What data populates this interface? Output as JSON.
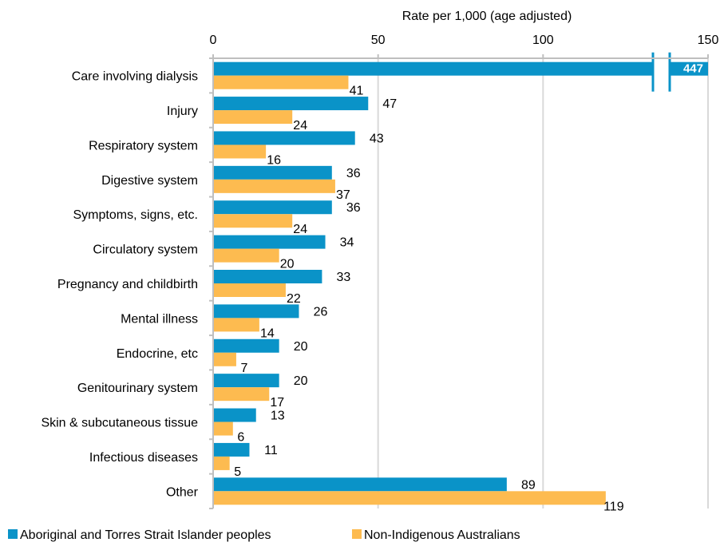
{
  "chart_data": {
    "type": "bar",
    "orientation": "horizontal",
    "title": "",
    "xlabel": "Rate per 1,000 (age adjusted)",
    "ylabel": "",
    "xlim": [
      0,
      150
    ],
    "x_ticks": [
      "0",
      "50",
      "100",
      "150"
    ],
    "x_tick_values": [
      0,
      50,
      100,
      150
    ],
    "axis_position": "top",
    "grid": true,
    "legend_position": "bottom-left",
    "axis_break": true,
    "categories": [
      "Care involving dialysis",
      "Injury",
      "Respiratory system",
      "Digestive system",
      "Symptoms, signs, etc.",
      "Circulatory system",
      "Pregnancy and childbirth",
      "Mental illness",
      "Endocrine, etc",
      "Genitourinary system",
      "Skin & subcutaneous tissue",
      "Infectious diseases",
      "Other"
    ],
    "series": [
      {
        "name": "Aboriginal and Torres Strait Islander peoples",
        "color": "#0a93c8",
        "values": [
          447,
          47,
          43,
          36,
          36,
          34,
          33,
          26,
          20,
          20,
          13,
          11,
          89
        ],
        "labels": [
          "447",
          "47",
          "43",
          "36",
          "36",
          "34",
          "33",
          "26",
          "20",
          "20",
          "13",
          "11",
          "89"
        ]
      },
      {
        "name": "Non-Indigenous Australians",
        "color": "#fdbb50",
        "values": [
          41,
          24,
          16,
          37,
          24,
          20,
          22,
          14,
          7,
          17,
          6,
          5,
          119
        ],
        "labels": [
          "41",
          "24",
          "16",
          "37",
          "24",
          "20",
          "22",
          "14",
          "7",
          "17",
          "6",
          "5",
          "119"
        ]
      }
    ]
  }
}
